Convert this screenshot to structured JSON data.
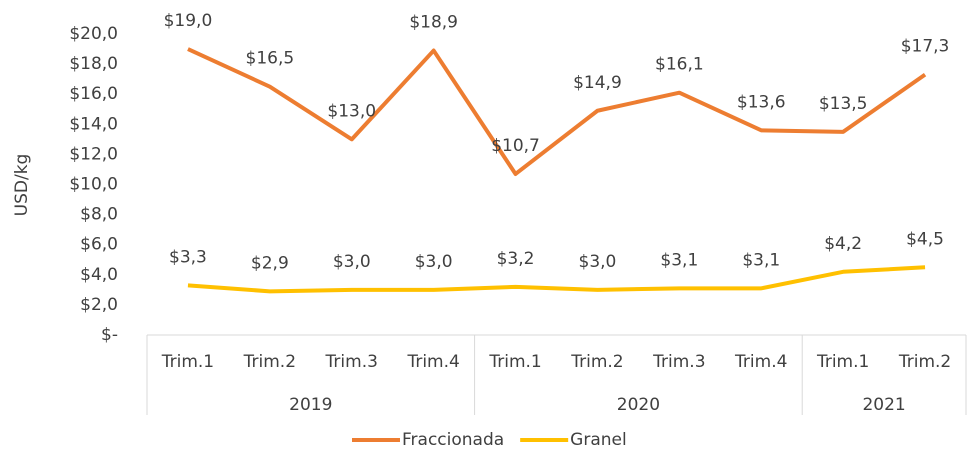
{
  "chart_data": {
    "type": "line",
    "y_label": "USD/kg",
    "categories": [
      "Trim.1",
      "Trim.2",
      "Trim.3",
      "Trim.4",
      "Trim.1",
      "Trim.2",
      "Trim.3",
      "Trim.4",
      "Trim.1",
      "Trim.2"
    ],
    "groups": [
      {
        "label": "2019",
        "span": 4
      },
      {
        "label": "2020",
        "span": 4
      },
      {
        "label": "2021",
        "span": 2
      }
    ],
    "series": [
      {
        "name": "Fraccionada",
        "color": "#ed7d31",
        "values": [
          19.0,
          16.5,
          13.0,
          18.9,
          10.7,
          14.9,
          16.1,
          13.6,
          13.5,
          17.3
        ],
        "value_labels": [
          "$19,0",
          "$16,5",
          "$13,0",
          "$18,9",
          "$10,7",
          "$14,9",
          "$16,1",
          "$13,6",
          "$13,5",
          "$17,3"
        ]
      },
      {
        "name": "Granel",
        "color": "#ffc000",
        "values": [
          3.3,
          2.9,
          3.0,
          3.0,
          3.2,
          3.0,
          3.1,
          3.1,
          4.2,
          4.5
        ],
        "value_labels": [
          "$3,3",
          "$2,9",
          "$3,0",
          "$3,0",
          "$3,2",
          "$3,0",
          "$3,1",
          "$3,1",
          "$4,2",
          "$4,5"
        ]
      }
    ],
    "ylim": [
      0,
      20
    ],
    "yticks": [
      {
        "value": 0,
        "label": "$-"
      },
      {
        "value": 2,
        "label": "$2,0"
      },
      {
        "value": 4,
        "label": "$4,0"
      },
      {
        "value": 6,
        "label": "$6,0"
      },
      {
        "value": 8,
        "label": "$8,0"
      },
      {
        "value": 10,
        "label": "$10,0"
      },
      {
        "value": 12,
        "label": "$12,0"
      },
      {
        "value": 14,
        "label": "$14,0"
      },
      {
        "value": 16,
        "label": "$16,0"
      },
      {
        "value": 18,
        "label": "$18,0"
      },
      {
        "value": 20,
        "label": "$20,0"
      }
    ],
    "grid": false,
    "legend": "bottom"
  }
}
